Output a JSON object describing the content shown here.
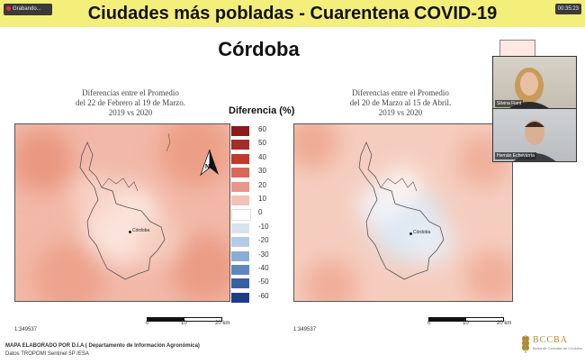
{
  "header": {
    "title": "Ciudades más pobladas - Cuarentena  COVID-19",
    "recording_label": "Grabando...",
    "clock": "00:35:23"
  },
  "slide": {
    "city": "Córdoba",
    "map_left": {
      "subtitle": [
        "Diferencias entre el Promedio",
        "del 22 de Febrero al 19 de Marzo.",
        "2019 vs 2020"
      ],
      "city_label": "Córdoba",
      "scale_ratio": "1:349537",
      "north_label": "N"
    },
    "map_right": {
      "subtitle": [
        "Diferencias entre el Promedio",
        "del 20 de Marzo al 15 de Abril.",
        "2019 vs 2020"
      ],
      "city_label": "Córdoba",
      "scale_ratio": "1:349537"
    },
    "scale_bar": {
      "labels": [
        "0",
        "10",
        "20 km"
      ]
    },
    "legend": {
      "title": "Diferencia (%)",
      "items": [
        {
          "label": "60",
          "color": "#8b1a1a"
        },
        {
          "label": "50",
          "color": "#a52a2a"
        },
        {
          "label": "40",
          "color": "#c0392b"
        },
        {
          "label": "30",
          "color": "#d9675a"
        },
        {
          "label": "20",
          "color": "#e8968a"
        },
        {
          "label": "10",
          "color": "#f3c1b6"
        },
        {
          "label": "0",
          "color": "#ffffff"
        },
        {
          "label": "-10",
          "color": "#d6e4f0"
        },
        {
          "label": "-20",
          "color": "#b4cbe3"
        },
        {
          "label": "-30",
          "color": "#8badd3"
        },
        {
          "label": "-40",
          "color": "#5f86bd"
        },
        {
          "label": "-50",
          "color": "#3a5fa0"
        },
        {
          "label": "-60",
          "color": "#1f3c86"
        }
      ]
    },
    "footer": {
      "line1": "MAPA ELABORADO POR D.I.A ( Departamento de Información Agronómica)",
      "line2": "Datos TROPOMI Sentinel 5P /ESA"
    },
    "logo": {
      "name": "BCCBA",
      "sub": "Bolsa de Cereales de Córdoba"
    }
  },
  "participants": [
    {
      "name": "Silvina Fiant"
    },
    {
      "name": "Hernán Echevarría"
    }
  ]
}
